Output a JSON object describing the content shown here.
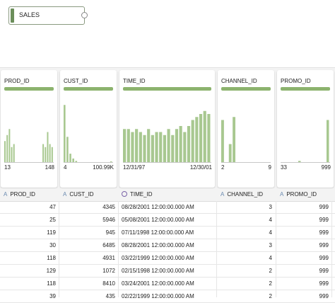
{
  "source_node": {
    "label": "SALES"
  },
  "columns": [
    {
      "name": "PROD_ID",
      "range_low": "13",
      "range_high": "148",
      "bars": [
        0.35,
        0.45,
        0.55,
        0.25,
        0.3,
        0,
        0,
        0,
        0,
        0,
        0,
        0,
        0,
        0,
        0,
        0,
        0,
        0.3,
        0.25,
        0.5,
        0.3,
        0.25
      ]
    },
    {
      "name": "CUST_ID",
      "range_low": "4",
      "range_high": "100.99K",
      "bars": [
        0.95,
        0.42,
        0.14,
        0.06,
        0.02,
        0,
        0,
        0,
        0,
        0,
        0,
        0,
        0,
        0,
        0,
        0,
        0.01
      ]
    },
    {
      "name": "TIME_ID",
      "range_low": "12/31/97",
      "range_high": "12/30/01",
      "bars": [
        0.55,
        0.55,
        0.5,
        0.55,
        0.5,
        0.45,
        0.55,
        0.45,
        0.5,
        0.5,
        0.45,
        0.55,
        0.45,
        0.55,
        0.6,
        0.5,
        0.6,
        0.7,
        0.75,
        0.8,
        0.85,
        0.8
      ]
    },
    {
      "name": "CHANNEL_ID",
      "range_low": "2",
      "range_high": "9",
      "bars": [
        0.7,
        0,
        0.3,
        0.75,
        0,
        0,
        0,
        0,
        0,
        0,
        0,
        0,
        0
      ]
    },
    {
      "name": "PROMO_ID",
      "range_low": "33",
      "range_high": "999",
      "bars": [
        0,
        0,
        0,
        0,
        0,
        0.02,
        0,
        0,
        0,
        0,
        0,
        0,
        0,
        0.7
      ]
    }
  ],
  "table": {
    "headers": [
      {
        "label": "PROD_ID",
        "icon": "text-type-icon"
      },
      {
        "label": "CUST_ID",
        "icon": "text-type-icon"
      },
      {
        "label": "TIME_ID",
        "icon": "clock-icon"
      },
      {
        "label": "CHANNEL_ID",
        "icon": "text-type-icon"
      },
      {
        "label": "PROMO_ID",
        "icon": "text-type-icon"
      }
    ],
    "rows": [
      [
        "47",
        "4345",
        "08/28/2001 12:00:00.000 AM",
        "3",
        "999"
      ],
      [
        "25",
        "5946",
        "05/08/2001 12:00:00.000 AM",
        "4",
        "999"
      ],
      [
        "119",
        "945",
        "07/11/1998 12:00:00.000 AM",
        "4",
        "999"
      ],
      [
        "30",
        "6485",
        "08/28/2001 12:00:00.000 AM",
        "3",
        "999"
      ],
      [
        "118",
        "4931",
        "03/22/1999 12:00:00.000 AM",
        "4",
        "999"
      ],
      [
        "129",
        "1072",
        "02/15/1998 12:00:00.000 AM",
        "2",
        "999"
      ],
      [
        "118",
        "8410",
        "03/24/2001 12:00:00.000 AM",
        "2",
        "999"
      ],
      [
        "39",
        "435",
        "02/22/1999 12:00:00.000 AM",
        "2",
        "999"
      ]
    ]
  },
  "colors": {
    "accent": "#8cb36e",
    "bar": "#a8c890"
  }
}
